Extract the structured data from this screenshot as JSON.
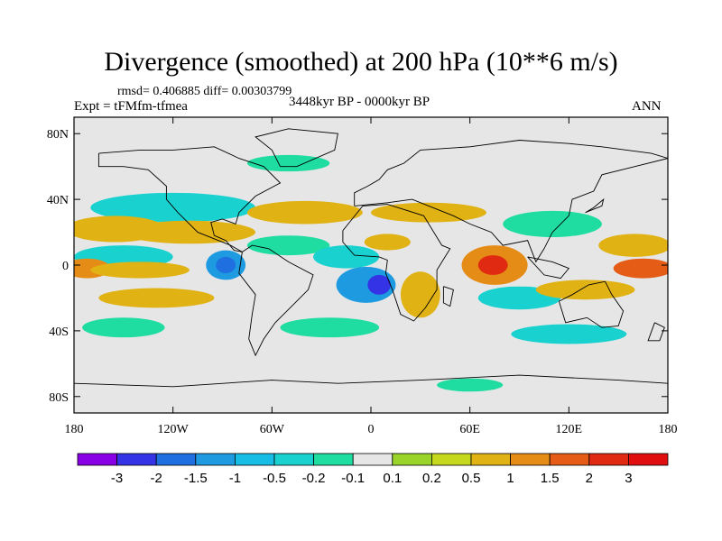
{
  "chart_data": {
    "type": "heatmap",
    "title": "Divergence (smoothed) at 200 hPa (10**6 m/s)",
    "stats": "rmsd= 0.406885 diff= 0.00303799",
    "experiment": "Expt = tFMfm-tfmea",
    "period": "3448kyr BP - 0000kyr BP",
    "season": "ANN",
    "xlim": [
      -180,
      180
    ],
    "ylim": [
      -90,
      90
    ],
    "x_ticks": [
      {
        "value": -180,
        "label": "180"
      },
      {
        "value": -120,
        "label": "120W"
      },
      {
        "value": -60,
        "label": "60W"
      },
      {
        "value": 0,
        "label": "0"
      },
      {
        "value": 60,
        "label": "60E"
      },
      {
        "value": 120,
        "label": "120E"
      },
      {
        "value": 180,
        "label": "180"
      }
    ],
    "y_ticks": [
      {
        "value": 80,
        "label": "80N"
      },
      {
        "value": 40,
        "label": "40N"
      },
      {
        "value": 0,
        "label": "0"
      },
      {
        "value": -40,
        "label": "40S"
      },
      {
        "value": -80,
        "label": "80S"
      }
    ],
    "colorbar": {
      "labels": [
        "-3",
        "-2",
        "-1.5",
        "-1",
        "-0.5",
        "-0.2",
        "-0.1",
        "0.1",
        "0.2",
        "0.5",
        "1",
        "1.5",
        "2",
        "3"
      ],
      "colors": [
        "#8a00e6",
        "#3434e6",
        "#1f6fe0",
        "#1e9ae0",
        "#18bde6",
        "#19d2d0",
        "#1fdca0",
        "#e6e6e6",
        "#9ad42a",
        "#c6d81e",
        "#e0b214",
        "#e58c16",
        "#e45c16",
        "#e02a12",
        "#e00e0e"
      ]
    },
    "background_color": "#e6e6e6",
    "field_regions": [
      {
        "lon": -120,
        "lat": 35,
        "rlon": 50,
        "rlat": 9,
        "color": "#19d2d0"
      },
      {
        "lon": -155,
        "lat": 22,
        "rlon": 30,
        "rlat": 8,
        "color": "#e0b214"
      },
      {
        "lon": -110,
        "lat": 20,
        "rlon": 40,
        "rlat": 7,
        "color": "#e0b214"
      },
      {
        "lon": -150,
        "lat": 5,
        "rlon": 30,
        "rlat": 7,
        "color": "#19d2d0"
      },
      {
        "lon": -172,
        "lat": -2,
        "rlon": 14,
        "rlat": 6,
        "color": "#e58c16"
      },
      {
        "lon": -140,
        "lat": -3,
        "rlon": 30,
        "rlat": 5,
        "color": "#e0b214"
      },
      {
        "lon": -88,
        "lat": 0,
        "rlon": 12,
        "rlat": 9,
        "color": "#1e9ae0"
      },
      {
        "lon": -88,
        "lat": 0,
        "rlon": 6,
        "rlat": 5,
        "color": "#1f6fe0"
      },
      {
        "lon": -130,
        "lat": -20,
        "rlon": 35,
        "rlat": 6,
        "color": "#e0b214"
      },
      {
        "lon": -150,
        "lat": -38,
        "rlon": 25,
        "rlat": 6,
        "color": "#1fdca0"
      },
      {
        "lon": -40,
        "lat": 32,
        "rlon": 35,
        "rlat": 7,
        "color": "#e0b214"
      },
      {
        "lon": -50,
        "lat": 12,
        "rlon": 25,
        "rlat": 6,
        "color": "#1fdca0"
      },
      {
        "lon": -15,
        "lat": 5,
        "rlon": 20,
        "rlat": 7,
        "color": "#19d2d0"
      },
      {
        "lon": -3,
        "lat": -12,
        "rlon": 18,
        "rlat": 11,
        "color": "#1e9ae0"
      },
      {
        "lon": 5,
        "lat": -12,
        "rlon": 7,
        "rlat": 6,
        "color": "#3434e6"
      },
      {
        "lon": 10,
        "lat": 14,
        "rlon": 14,
        "rlat": 5,
        "color": "#e0b214"
      },
      {
        "lon": 35,
        "lat": 32,
        "rlon": 35,
        "rlat": 6,
        "color": "#e0b214"
      },
      {
        "lon": 30,
        "lat": -18,
        "rlon": 12,
        "rlat": 14,
        "color": "#e0b214"
      },
      {
        "lon": -25,
        "lat": -38,
        "rlon": 30,
        "rlat": 6,
        "color": "#1fdca0"
      },
      {
        "lon": 75,
        "lat": 0,
        "rlon": 20,
        "rlat": 12,
        "color": "#e58c16"
      },
      {
        "lon": 74,
        "lat": 0,
        "rlon": 9,
        "rlat": 6,
        "color": "#e02a12"
      },
      {
        "lon": 90,
        "lat": -20,
        "rlon": 25,
        "rlat": 7,
        "color": "#19d2d0"
      },
      {
        "lon": 110,
        "lat": 25,
        "rlon": 30,
        "rlat": 8,
        "color": "#1fdca0"
      },
      {
        "lon": 160,
        "lat": 12,
        "rlon": 22,
        "rlat": 7,
        "color": "#e0b214"
      },
      {
        "lon": 165,
        "lat": -2,
        "rlon": 18,
        "rlat": 6,
        "color": "#e45c16"
      },
      {
        "lon": 130,
        "lat": -15,
        "rlon": 30,
        "rlat": 6,
        "color": "#e0b214"
      },
      {
        "lon": 120,
        "lat": -42,
        "rlon": 35,
        "rlat": 6,
        "color": "#19d2d0"
      },
      {
        "lon": -50,
        "lat": 62,
        "rlon": 25,
        "rlat": 5,
        "color": "#1fdca0"
      },
      {
        "lon": 60,
        "lat": -73,
        "rlon": 20,
        "rlat": 4,
        "color": "#1fdca0"
      }
    ]
  }
}
